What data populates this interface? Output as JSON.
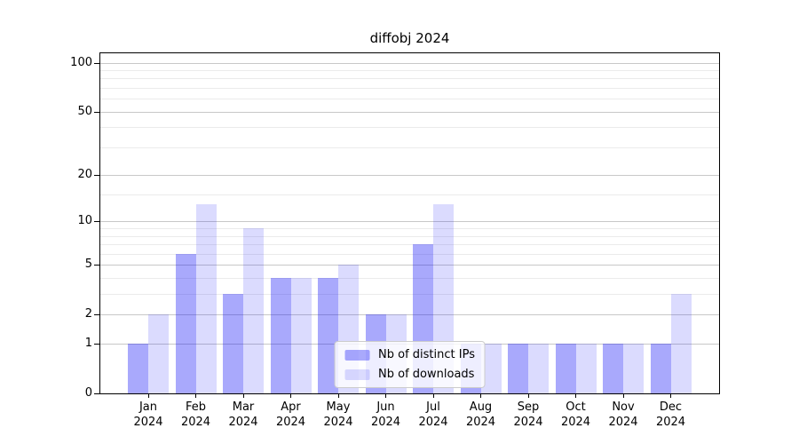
{
  "title": "diffobj 2024",
  "chart_data": {
    "type": "bar",
    "title": "diffobj 2024",
    "categories": [
      "Jan 2024",
      "Feb 2024",
      "Mar 2024",
      "Apr 2024",
      "May 2024",
      "Jun 2024",
      "Jul 2024",
      "Aug 2024",
      "Sep 2024",
      "Oct 2024",
      "Nov 2024",
      "Dec 2024"
    ],
    "series": [
      {
        "name": "Nb of distinct IPs",
        "values": [
          1,
          6,
          3,
          4,
          4,
          2,
          7,
          1,
          1,
          1,
          1,
          1
        ]
      },
      {
        "name": "Nb of downloads",
        "values": [
          2,
          13,
          9,
          4,
          5,
          2,
          13,
          1,
          1,
          1,
          1,
          3
        ]
      }
    ],
    "xlabel": "",
    "ylabel": "",
    "y_scale": "log10(1+x)",
    "ylim": [
      0,
      114
    ],
    "y_major_ticks": [
      0,
      1,
      2,
      5,
      10,
      20,
      50,
      100
    ],
    "y_minor_gridlines": [
      3,
      4,
      6,
      7,
      8,
      9,
      15,
      30,
      40,
      60,
      70,
      80,
      90
    ],
    "grid": "horizontal",
    "legend_position": "lower center",
    "colors": {
      "ips": "rgba(10,10,245,0.35)",
      "downloads": "rgba(10,10,245,0.145)",
      "grid_major": "#c8c8c8",
      "grid_minor": "#ebebeb",
      "axis": "#000000",
      "legend_border": "#cccccc"
    }
  }
}
